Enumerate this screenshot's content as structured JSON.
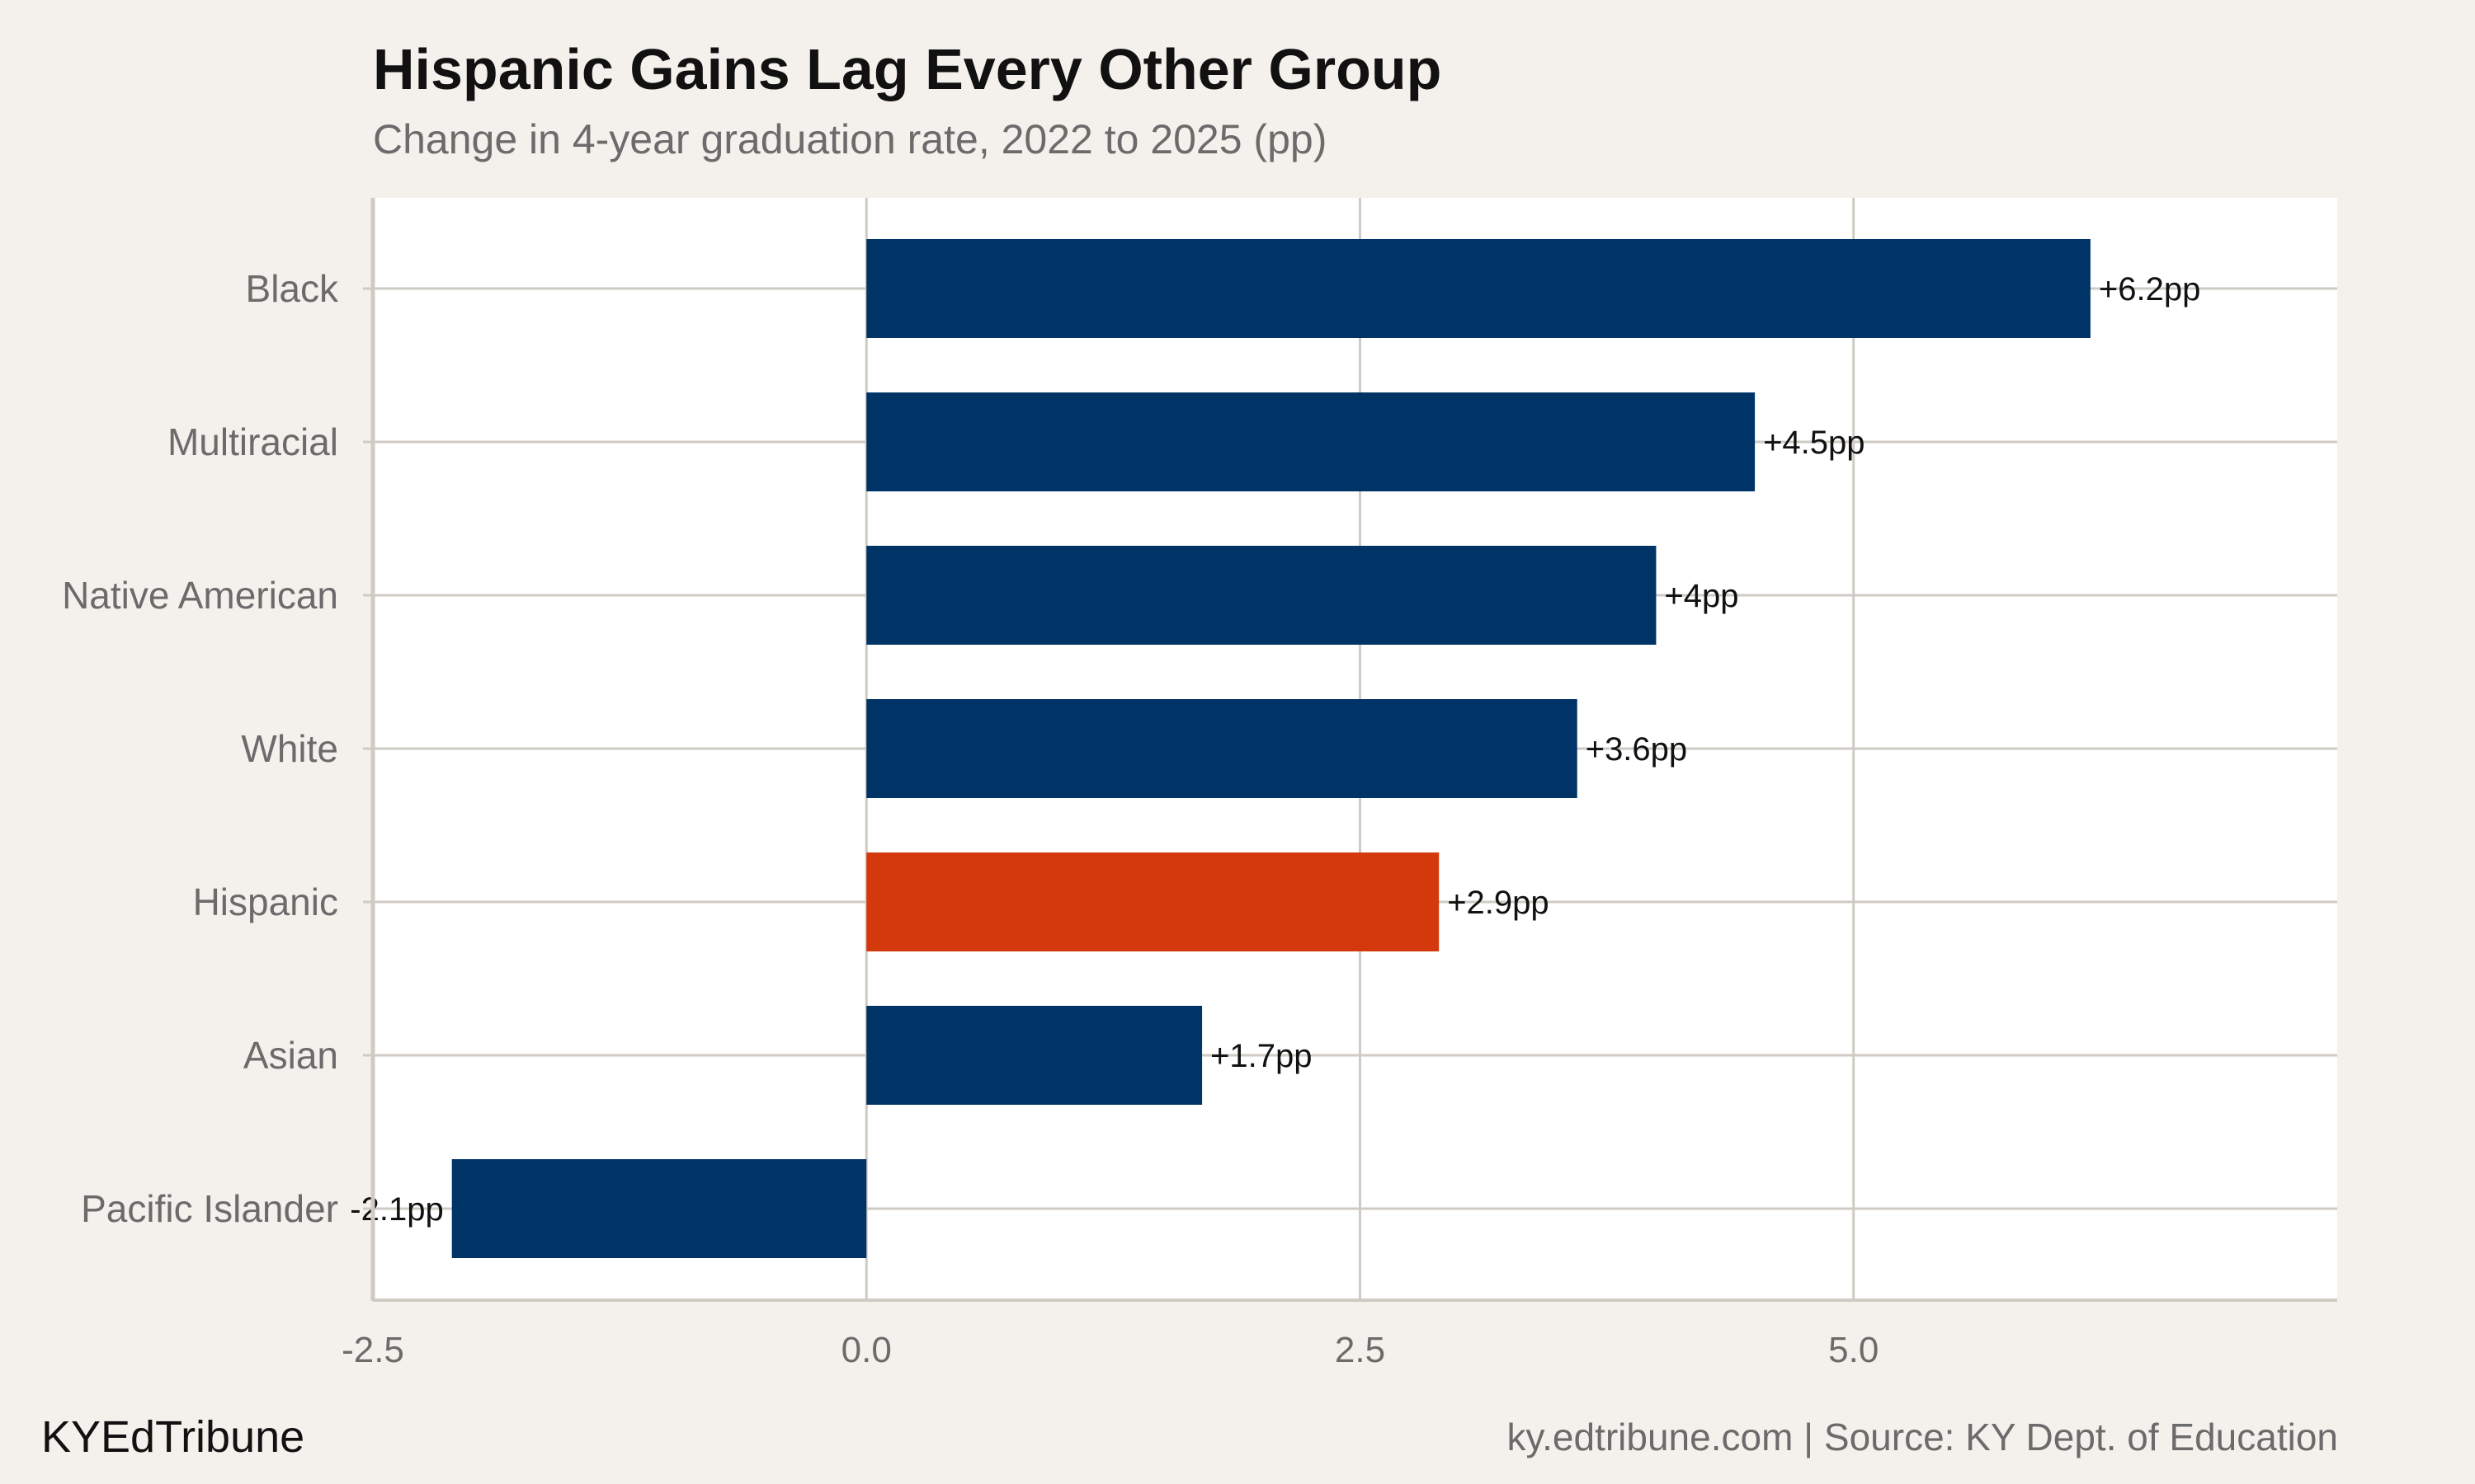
{
  "header": {
    "title": "Hispanic Gains Lag Every Other Group",
    "subtitle": "Change in 4-year graduation rate, 2022 to 2025 (pp)"
  },
  "footer": {
    "brand": "KYEdTribune",
    "source": "ky.edtribune.com | Source: KY Dept. of Education"
  },
  "colors": {
    "default_bar": "#003366",
    "highlight_bar": "#d4380d",
    "background": "#f4f1ec",
    "panel": "#ffffff",
    "grid": "#cfcbc4",
    "axis_text": "#6b6b6b"
  },
  "chart_data": {
    "type": "bar",
    "orientation": "horizontal",
    "title": "Hispanic Gains Lag Every Other Group",
    "subtitle": "Change in 4-year graduation rate, 2022 to 2025 (pp)",
    "categories": [
      "Black",
      "Multiracial",
      "Native American",
      "White",
      "Hispanic",
      "Asian",
      "Pacific Islander"
    ],
    "values": [
      6.2,
      4.5,
      4.0,
      3.6,
      2.9,
      1.7,
      -2.1
    ],
    "data_labels": [
      "+6.2pp",
      "+4.5pp",
      "+4pp",
      "+3.6pp",
      "+2.9pp",
      "+1.7pp",
      "-2.1pp"
    ],
    "highlight": [
      "Hispanic"
    ],
    "xlim": [
      -2.5,
      7.45
    ],
    "xticks": [
      -2.5,
      0.0,
      2.5,
      5.0
    ],
    "xtick_labels": [
      "-2.5",
      "0.0",
      "2.5",
      "5.0"
    ],
    "xlabel": "",
    "ylabel": "",
    "grid": true,
    "legend": "none"
  }
}
